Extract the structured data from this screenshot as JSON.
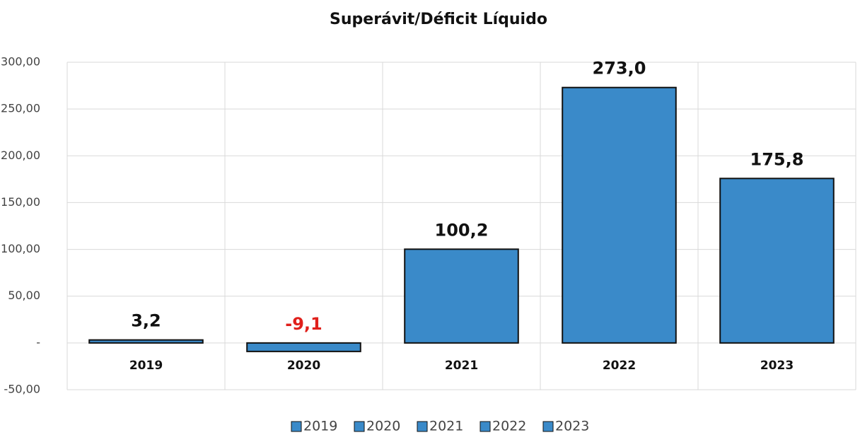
{
  "chart_data": {
    "type": "bar",
    "title": "Superávit/Déficit Líquido",
    "categories": [
      "2019",
      "2020",
      "2021",
      "2022",
      "2023"
    ],
    "values": [
      3.2,
      -9.1,
      100.2,
      273.0,
      175.8
    ],
    "value_labels": [
      "3,2",
      "-9,1",
      "100,2",
      "273,0",
      "175,8"
    ],
    "color": "#3a8ac9",
    "negative_label_color": "#e0201b",
    "ylim": [
      -50,
      300
    ],
    "yticks": [
      {
        "value": -50,
        "label": "-50,00"
      },
      {
        "value": 0,
        "label": "-"
      },
      {
        "value": 50,
        "label": "50,00"
      },
      {
        "value": 100,
        "label": "100,00"
      },
      {
        "value": 150,
        "label": "150,00"
      },
      {
        "value": 200,
        "label": "200,00"
      },
      {
        "value": 250,
        "label": "250,00"
      },
      {
        "value": 300,
        "label": "300,00"
      }
    ],
    "grid": true,
    "legend": "bottom"
  }
}
